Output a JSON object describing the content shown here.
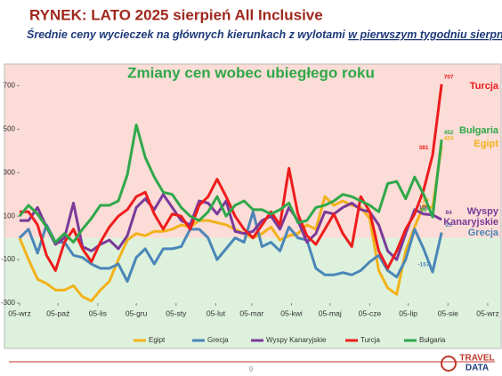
{
  "header": {
    "title": "RYNEK: LATO 2025 sierpień All Inclusive",
    "subtitle": "Średnie ceny wycieczek na głównych kierunkach z wylotami",
    "subtitle_emphasis": "w pierwszym tygodniu sierpnia"
  },
  "chart_data": {
    "type": "line",
    "title": "Zmiany cen wobec ubiegłego roku",
    "x": [
      0,
      7,
      14,
      21,
      28,
      35,
      42,
      49,
      56,
      63,
      70,
      77,
      84,
      91,
      98,
      105,
      112,
      119,
      126,
      133,
      140,
      147,
      154,
      161,
      168,
      175,
      182,
      189,
      196,
      203,
      210,
      217,
      224,
      231,
      238,
      245,
      252,
      259,
      266,
      273,
      280,
      287,
      294,
      301,
      308,
      315,
      322,
      329
    ],
    "xlim": [
      0,
      365
    ],
    "xticks": [
      {
        "value": 0,
        "label": "05-wrz"
      },
      {
        "value": 30,
        "label": "05-paź"
      },
      {
        "value": 61,
        "label": "05-lis"
      },
      {
        "value": 91,
        "label": "05-gru"
      },
      {
        "value": 122,
        "label": "05-sty"
      },
      {
        "value": 153,
        "label": "05-lut"
      },
      {
        "value": 181,
        "label": "05-mar"
      },
      {
        "value": 212,
        "label": "05-kwi"
      },
      {
        "value": 242,
        "label": "05-maj"
      },
      {
        "value": 273,
        "label": "05-cze"
      },
      {
        "value": 303,
        "label": "05-lip"
      },
      {
        "value": 334,
        "label": "05-sie"
      },
      {
        "value": 365,
        "label": "05-wrz"
      }
    ],
    "ylim": [
      -300,
      800
    ],
    "yticks": [
      -300,
      -100,
      100,
      300,
      500,
      700
    ],
    "background": {
      "positive": "#fbdcd6",
      "negative": "#ddf1dc"
    },
    "legend": "bottom",
    "series": [
      {
        "name": "Egipt",
        "color": "#f2b21a",
        "values": [
          0,
          -100,
          -190,
          -210,
          -240,
          -240,
          -220,
          -270,
          -290,
          -240,
          -200,
          -100,
          -10,
          20,
          10,
          30,
          30,
          40,
          60,
          50,
          80,
          80,
          70,
          60,
          40,
          20,
          0,
          20,
          50,
          -10,
          10,
          20,
          60,
          40,
          190,
          150,
          170,
          150,
          140,
          90,
          -150,
          -230,
          -260,
          -60,
          50,
          150,
          139,
          424
        ]
      },
      {
        "name": "Grecja",
        "color": "#4a86b8",
        "values": [
          0,
          40,
          -70,
          60,
          -20,
          -20,
          -80,
          -90,
          -120,
          -140,
          -140,
          -120,
          -200,
          -90,
          -50,
          -120,
          -50,
          -50,
          -40,
          40,
          40,
          0,
          -100,
          -50,
          0,
          -20,
          120,
          -40,
          -20,
          -60,
          50,
          0,
          -10,
          -140,
          -170,
          -170,
          -160,
          -170,
          -150,
          -110,
          -80,
          -150,
          -180,
          -100,
          40,
          -50,
          -157,
          25
        ]
      },
      {
        "name": "Wyspy Kanaryjskie",
        "color": "#7a3a9a",
        "values": [
          80,
          80,
          140,
          50,
          -30,
          0,
          160,
          -40,
          -60,
          -30,
          -10,
          -50,
          10,
          140,
          180,
          130,
          200,
          140,
          80,
          60,
          170,
          160,
          110,
          170,
          30,
          20,
          30,
          80,
          100,
          40,
          140,
          80,
          -20,
          20,
          120,
          110,
          140,
          160,
          130,
          120,
          60,
          -60,
          -100,
          20,
          130,
          110,
          106,
          84
        ]
      },
      {
        "name": "Turcja",
        "color": "#ee1c1c",
        "values": [
          120,
          120,
          60,
          -80,
          -150,
          -20,
          40,
          -50,
          -110,
          -20,
          50,
          100,
          130,
          190,
          210,
          110,
          40,
          110,
          100,
          40,
          150,
          190,
          270,
          190,
          100,
          40,
          0,
          60,
          120,
          60,
          320,
          110,
          10,
          -30,
          40,
          110,
          20,
          -40,
          190,
          120,
          -60,
          -140,
          -60,
          40,
          110,
          220,
          381,
          707
        ]
      },
      {
        "name": "Bułgaria",
        "color": "#2fa84a",
        "values": [
          100,
          150,
          110,
          50,
          -20,
          20,
          -20,
          40,
          90,
          150,
          150,
          170,
          290,
          520,
          370,
          280,
          210,
          200,
          140,
          100,
          80,
          120,
          190,
          100,
          150,
          170,
          130,
          130,
          110,
          130,
          160,
          70,
          80,
          140,
          150,
          170,
          200,
          190,
          170,
          150,
          120,
          250,
          260,
          180,
          280,
          200,
          96,
          452
        ]
      }
    ]
  },
  "footer": {
    "page": "9",
    "logo_top": "TRAVEL",
    "logo_bottom": "DATA"
  }
}
